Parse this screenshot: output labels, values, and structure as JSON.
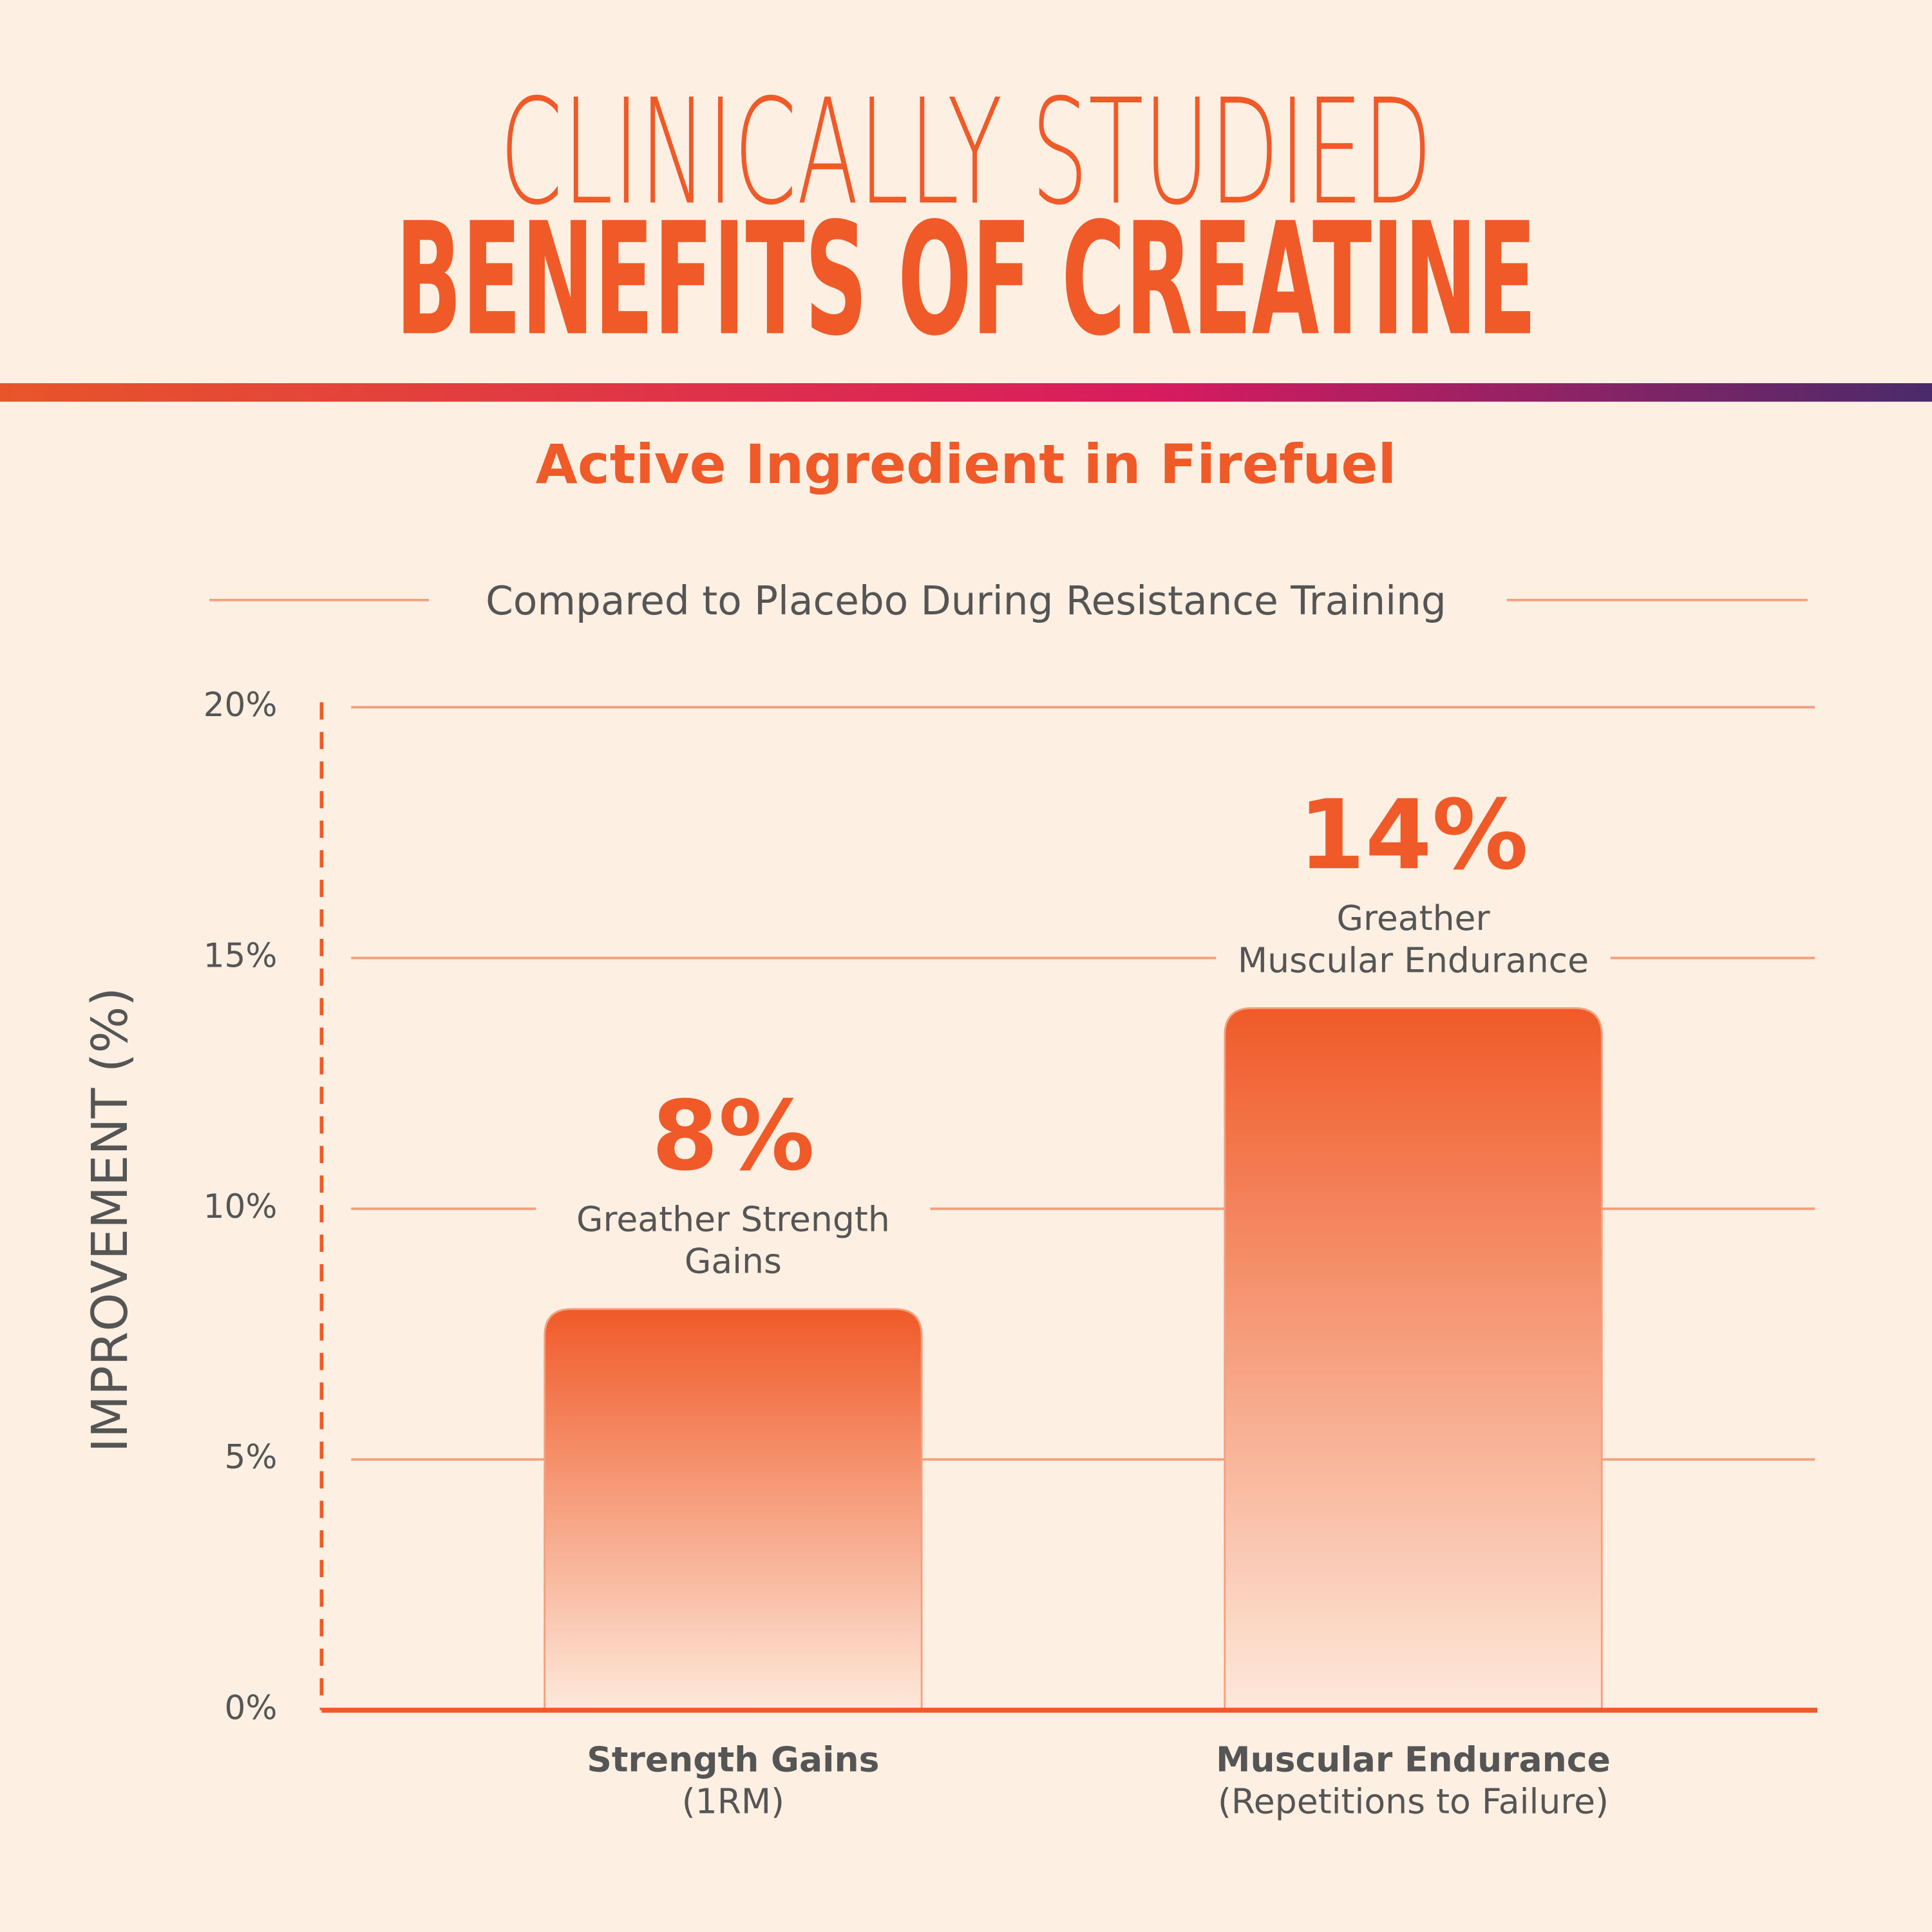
{
  "header": {
    "title_line1": "CLINICALLY STUDIED",
    "title_line2": "BENEFITS OF CREATINE",
    "subtitle": "Active Ingredient in Firefuel"
  },
  "chart_data": {
    "type": "bar",
    "title": "Compared to Placebo During Resistance Training",
    "ylabel": "IMPROVEMENT (%)",
    "categories": [
      "Strength Gains",
      "Muscular Endurance"
    ],
    "category_notes": [
      "(1RM)",
      "(Repetitions to Failure)"
    ],
    "values": [
      8,
      14
    ],
    "value_labels": [
      "8%",
      "14%"
    ],
    "annotations": [
      [
        "Greather Strength",
        "Gains"
      ],
      [
        "Greather",
        "Muscular Endurance"
      ]
    ],
    "color": "#f05a28",
    "ylim": [
      0,
      20
    ],
    "yticks": [
      {
        "value": 0,
        "label": "0%"
      },
      {
        "value": 5,
        "label": "5%"
      },
      {
        "value": 10,
        "label": "10%"
      },
      {
        "value": 15,
        "label": "15%"
      },
      {
        "value": 20,
        "label": "20%"
      }
    ],
    "grid": true
  }
}
